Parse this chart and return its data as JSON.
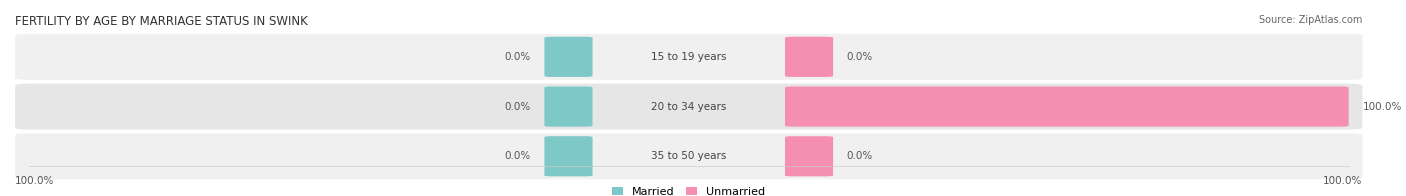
{
  "title": "FERTILITY BY AGE BY MARRIAGE STATUS IN SWINK",
  "source": "Source: ZipAtlas.com",
  "rows": [
    {
      "label": "15 to 19 years",
      "married": 0.0,
      "unmarried": 0.0
    },
    {
      "label": "20 to 34 years",
      "married": 0.0,
      "unmarried": 100.0
    },
    {
      "label": "35 to 50 years",
      "married": 0.0,
      "unmarried": 0.0
    }
  ],
  "married_color": "#7EC8C8",
  "unmarried_color": "#F48FB1",
  "row_bg_colors": [
    "#F0F0F0",
    "#E6E6E6",
    "#F0F0F0"
  ],
  "axis_label_left": "100.0%",
  "axis_label_right": "100.0%",
  "legend_married": "Married",
  "legend_unmarried": "Unmarried"
}
